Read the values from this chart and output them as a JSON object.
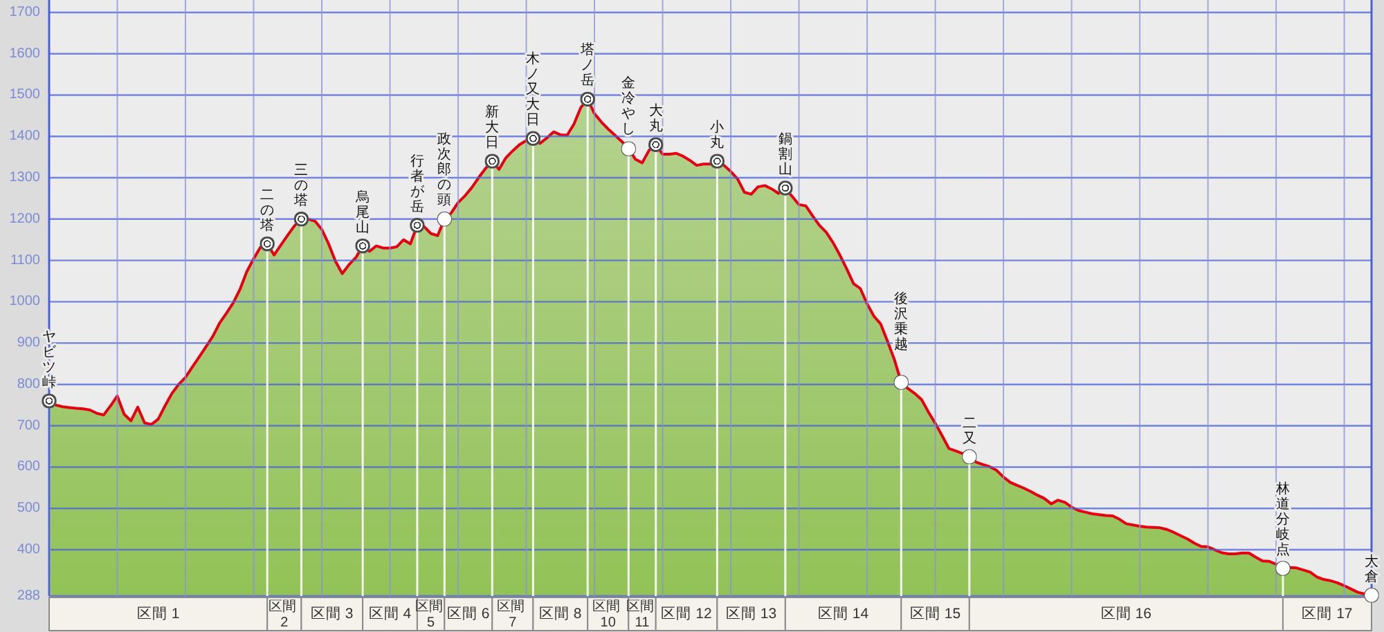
{
  "chart_data": {
    "type": "area",
    "categories": [
      "ヤビツ峠",
      null,
      null,
      null,
      null,
      null,
      null,
      null,
      null,
      null,
      null,
      null,
      null,
      null,
      null,
      null,
      null,
      null,
      null,
      null,
      null,
      null,
      null,
      null,
      null,
      null,
      null,
      null,
      null,
      null,
      null,
      null,
      "二の塔",
      null,
      null,
      null,
      null,
      "三の塔",
      null,
      null,
      null,
      null,
      null,
      null,
      null,
      null,
      "烏尾山",
      null,
      null,
      null,
      null,
      null,
      null,
      null,
      "行者が岳",
      null,
      null,
      null,
      "政次郎の頭",
      null,
      null,
      null,
      null,
      null,
      null,
      "新大日",
      null,
      null,
      null,
      null,
      null,
      "木ノ又大日",
      null,
      null,
      null,
      null,
      null,
      null,
      null,
      "塔ノ岳",
      null,
      null,
      null,
      null,
      null,
      "金冷やし",
      null,
      null,
      null,
      "大丸",
      null,
      null,
      null,
      null,
      null,
      null,
      null,
      null,
      "小丸",
      null,
      null,
      null,
      null,
      null,
      null,
      null,
      null,
      null,
      "鍋割山",
      null,
      null,
      null,
      null,
      null,
      null,
      null,
      null,
      null,
      null,
      null,
      null,
      null,
      null,
      null,
      null,
      "後沢乗越",
      null,
      null,
      null,
      null,
      null,
      null,
      null,
      null,
      null,
      "二又",
      null,
      null,
      null,
      null,
      null,
      null,
      null,
      null,
      null,
      null,
      null,
      null,
      null,
      null,
      null,
      null,
      null,
      null,
      null,
      null,
      null,
      null,
      null,
      null,
      null,
      null,
      null,
      null,
      null,
      null,
      null,
      null,
      null,
      null,
      null,
      null,
      null,
      null,
      null,
      null,
      null,
      null,
      null,
      null,
      null,
      "林道分岐点",
      null,
      null,
      null,
      null,
      null,
      null,
      null,
      null,
      null,
      null,
      null,
      null,
      "大倉"
    ],
    "series": [
      {
        "color": "#92c257",
        "values": [
          760,
          750,
          746,
          744,
          742,
          741,
          738,
          730,
          726,
          748,
          772,
          728,
          712,
          745,
          707,
          703,
          716,
          748,
          778,
          800,
          817,
          842,
          866,
          891,
          916,
          948,
          972,
          997,
          1030,
          1073,
          1104,
          1132,
          1140,
          1113,
          1137,
          1161,
          1184,
          1200,
          1200,
          1195,
          1175,
          1140,
          1098,
          1068,
          1090,
          1107,
          1135,
          1122,
          1135,
          1130,
          1130,
          1133,
          1150,
          1140,
          1185,
          1182,
          1165,
          1160,
          1200,
          1215,
          1240,
          1256,
          1276,
          1300,
          1322,
          1340,
          1320,
          1348,
          1365,
          1380,
          1390,
          1395,
          1383,
          1396,
          1411,
          1404,
          1403,
          1430,
          1470,
          1490,
          1455,
          1435,
          1418,
          1403,
          1388,
          1370,
          1345,
          1336,
          1366,
          1380,
          1357,
          1357,
          1359,
          1352,
          1342,
          1330,
          1333,
          1333,
          1340,
          1330,
          1315,
          1297,
          1265,
          1260,
          1278,
          1281,
          1273,
          1262,
          1275,
          1255,
          1235,
          1232,
          1208,
          1185,
          1168,
          1143,
          1113,
          1080,
          1044,
          1032,
          995,
          965,
          946,
          904,
          860,
          805,
          790,
          778,
          763,
          733,
          706,
          676,
          645,
          639,
          633,
          625,
          612,
          606,
          601,
          592,
          576,
          563,
          556,
          549,
          541,
          532,
          524,
          511,
          520,
          515,
          503,
          495,
          491,
          487,
          485,
          483,
          482,
          474,
          463,
          460,
          457,
          455,
          454,
          453,
          449,
          442,
          434,
          426,
          416,
          408,
          407,
          400,
          393,
          390,
          390,
          392,
          392,
          382,
          373,
          372,
          365,
          355,
          357,
          356,
          351,
          346,
          334,
          328,
          325,
          320,
          313,
          305,
          297,
          293,
          290
        ]
      },
      {
        "type": "scatter",
        "color": "#404040",
        "marker": "circle",
        "values": [
          760,
          null,
          null,
          null,
          null,
          null,
          null,
          null,
          null,
          null,
          null,
          null,
          null,
          null,
          null,
          null,
          null,
          null,
          null,
          null,
          null,
          null,
          null,
          null,
          null,
          null,
          null,
          null,
          null,
          null,
          null,
          null,
          1140,
          null,
          null,
          null,
          null,
          1200,
          null,
          null,
          null,
          null,
          null,
          null,
          null,
          null,
          1135,
          null,
          null,
          null,
          null,
          null,
          null,
          null,
          1185,
          null,
          null,
          null,
          null,
          null,
          null,
          null,
          null,
          null,
          null,
          1340,
          null,
          null,
          null,
          null,
          null,
          1395,
          null,
          null,
          null,
          null,
          null,
          null,
          null,
          1490,
          null,
          null,
          null,
          null,
          null,
          null,
          null,
          null,
          null,
          1380,
          null,
          null,
          null,
          null,
          null,
          null,
          null,
          null,
          1340,
          null,
          null,
          null,
          null,
          null,
          null,
          null,
          null,
          null,
          1275,
          null,
          null,
          null,
          null,
          null,
          null,
          null,
          null,
          null,
          null,
          null,
          null,
          null,
          null,
          null,
          null,
          null,
          null,
          null,
          null,
          null,
          null,
          null,
          null,
          null,
          null,
          null,
          null,
          null,
          null,
          null,
          null,
          null,
          null,
          null,
          null,
          null,
          null,
          null,
          null,
          null,
          null,
          null,
          null,
          null,
          null,
          null,
          null,
          null,
          null,
          null,
          null,
          null,
          null,
          null,
          null,
          null,
          null,
          null,
          null,
          null,
          null,
          null,
          null,
          null,
          null,
          null,
          null,
          null,
          null,
          null,
          null,
          null,
          null,
          null,
          null,
          null,
          null,
          null,
          null,
          null,
          null,
          null,
          null,
          null,
          null
        ]
      },
      {
        "type": "scatter",
        "color": "#ffffff",
        "marker": "circle",
        "values": [
          null,
          null,
          null,
          null,
          null,
          null,
          null,
          null,
          null,
          null,
          null,
          null,
          null,
          null,
          null,
          null,
          null,
          null,
          null,
          null,
          null,
          null,
          null,
          null,
          null,
          null,
          null,
          null,
          null,
          null,
          null,
          null,
          null,
          null,
          null,
          null,
          null,
          null,
          null,
          null,
          null,
          null,
          null,
          null,
          null,
          null,
          null,
          null,
          null,
          null,
          null,
          null,
          null,
          null,
          null,
          null,
          null,
          null,
          1200,
          null,
          null,
          null,
          null,
          null,
          null,
          null,
          null,
          null,
          null,
          null,
          null,
          null,
          null,
          null,
          null,
          null,
          null,
          null,
          null,
          null,
          null,
          null,
          null,
          null,
          null,
          1370,
          null,
          null,
          null,
          null,
          null,
          null,
          null,
          null,
          null,
          null,
          null,
          null,
          null,
          null,
          null,
          null,
          null,
          null,
          null,
          null,
          null,
          null,
          null,
          null,
          null,
          null,
          null,
          null,
          null,
          null,
          null,
          null,
          null,
          null,
          null,
          null,
          null,
          null,
          null,
          805,
          null,
          null,
          null,
          null,
          null,
          null,
          null,
          null,
          null,
          625,
          null,
          null,
          null,
          null,
          null,
          null,
          null,
          null,
          null,
          null,
          null,
          null,
          null,
          null,
          null,
          null,
          null,
          null,
          null,
          null,
          null,
          null,
          null,
          null,
          null,
          null,
          null,
          null,
          null,
          null,
          null,
          null,
          null,
          null,
          null,
          null,
          null,
          null,
          null,
          null,
          null,
          null,
          null,
          null,
          null,
          355,
          null,
          null,
          null,
          null,
          null,
          null,
          null,
          null,
          null,
          null,
          null,
          null,
          290
        ]
      }
    ],
    "ylim": [
      288,
      1730
    ],
    "yticks": [
      288,
      400,
      500,
      600,
      700,
      800,
      900,
      1000,
      1100,
      1200,
      1300,
      1400,
      1500,
      1600,
      1700
    ],
    "grid": true,
    "annotations": [
      "区間 1",
      "区間 2",
      "区間 3",
      "区間 4",
      "区間 5",
      "区間 6",
      "区間 7",
      "区間 8",
      "区間 10",
      "区間 11",
      "区間 12",
      "区間 13",
      "区間 14",
      "区間 15",
      "区間 16",
      "区間 17"
    ]
  }
}
